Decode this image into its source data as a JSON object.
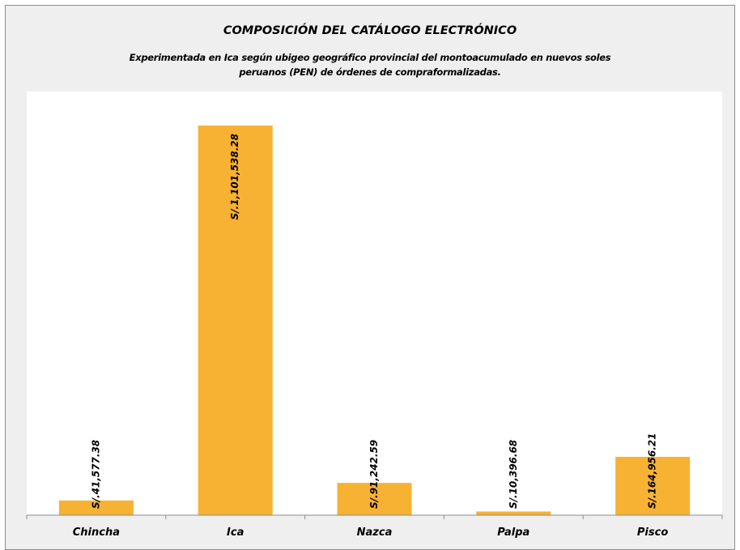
{
  "chart_data": {
    "type": "bar",
    "title": "COMPOSICIÓN DEL CATÁLOGO  ELECTRÓNICO",
    "subtitle": "Experimentada en Ica según ubigeo geográfico provincial del montoacumulado en nuevos soles peruanos (PEN) de órdenes de compraformalizadas.",
    "categories": [
      "Chincha",
      "Ica",
      "Nazca",
      "Palpa",
      "Pisco"
    ],
    "values": [
      41577.38,
      1101538.28,
      91242.59,
      10396.68,
      164956.21
    ],
    "data_labels": [
      "S/.41,577.38",
      "S/.1,101,538.28",
      "S/.91,242.59",
      "S/.10,396.68",
      "S/.164,956.21"
    ],
    "xlabel": "",
    "ylabel": "",
    "ylim": [
      0,
      1101538.28
    ],
    "grid": false,
    "legend": "none",
    "colors": {
      "bar": "#F7B233",
      "plot_background": "#FFFFFF",
      "chart_background": "#EFEFEF",
      "axis": "#8C8C8C"
    }
  }
}
